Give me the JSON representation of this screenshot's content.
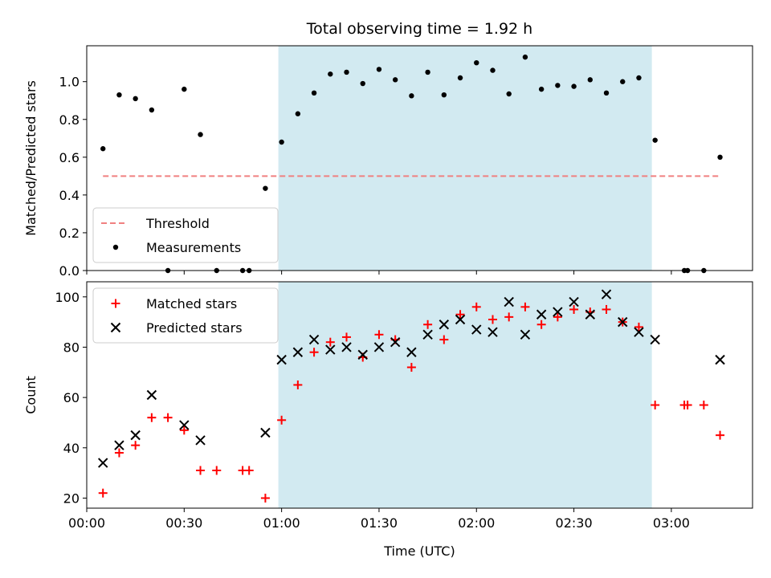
{
  "chart_data": [
    {
      "type": "scatter",
      "title": "Total observing time = 1.92 h",
      "ylabel": "Matched/Predicted stars",
      "xlim": [
        "00:00",
        "03:25"
      ],
      "ylim": [
        0,
        1.19
      ],
      "yticks": [
        "0.0",
        "0.2",
        "0.4",
        "0.6",
        "0.8",
        "1.0"
      ],
      "highlight_span": {
        "start": "00:59",
        "end": "02:54",
        "color": "#add8e6"
      },
      "threshold": {
        "name": "Threshold",
        "value": 0.5,
        "start": "00:05",
        "end": "03:15",
        "color": "#f08080"
      },
      "legend": [
        "Threshold",
        "Measurements"
      ],
      "legend_position": "lower-left",
      "series": [
        {
          "name": "Measurements",
          "marker": "dot",
          "color": "#000000",
          "x": [
            "00:05",
            "00:10",
            "00:15",
            "00:20",
            "00:25",
            "00:30",
            "00:35",
            "00:40",
            "00:48",
            "00:50",
            "00:55",
            "01:00",
            "01:05",
            "01:10",
            "01:15",
            "01:20",
            "01:25",
            "01:30",
            "01:35",
            "01:40",
            "01:45",
            "01:50",
            "01:55",
            "02:00",
            "02:05",
            "02:10",
            "02:15",
            "02:20",
            "02:25",
            "02:30",
            "02:35",
            "02:40",
            "02:45",
            "02:50",
            "02:55",
            "03:04",
            "03:05",
            "03:10",
            "03:15"
          ],
          "y": [
            0.645,
            0.93,
            0.91,
            0.85,
            0.0,
            0.96,
            0.72,
            0.0,
            0.0,
            0.0,
            0.435,
            0.68,
            0.83,
            0.94,
            1.04,
            1.05,
            0.99,
            1.065,
            1.01,
            0.925,
            1.05,
            0.93,
            1.02,
            1.1,
            1.06,
            0.935,
            1.13,
            0.96,
            0.98,
            0.975,
            1.01,
            0.94,
            1.0,
            1.02,
            0.69,
            0.0,
            0.0,
            0.0,
            0.6
          ]
        }
      ]
    },
    {
      "type": "scatter",
      "xlabel": "Time (UTC)",
      "ylabel": "Count",
      "xlim": [
        "00:00",
        "03:25"
      ],
      "ylim": [
        16,
        106
      ],
      "yticks": [
        "20",
        "40",
        "60",
        "80",
        "100"
      ],
      "xticks": [
        "00:00",
        "00:30",
        "01:00",
        "01:30",
        "02:00",
        "02:30",
        "03:00"
      ],
      "highlight_span": {
        "start": "00:59",
        "end": "02:54",
        "color": "#add8e6"
      },
      "legend": [
        "Matched stars",
        "Predicted stars"
      ],
      "legend_position": "upper-left",
      "series": [
        {
          "name": "Matched stars",
          "marker": "plus",
          "color": "#ff0000",
          "x": [
            "00:05",
            "00:10",
            "00:15",
            "00:20",
            "00:25",
            "00:30",
            "00:35",
            "00:40",
            "00:48",
            "00:50",
            "00:55",
            "01:00",
            "01:05",
            "01:10",
            "01:15",
            "01:20",
            "01:25",
            "01:30",
            "01:35",
            "01:40",
            "01:45",
            "01:50",
            "01:55",
            "02:00",
            "02:05",
            "02:10",
            "02:15",
            "02:20",
            "02:25",
            "02:30",
            "02:35",
            "02:40",
            "02:45",
            "02:50",
            "02:55",
            "03:04",
            "03:05",
            "03:10",
            "03:15"
          ],
          "y": [
            22,
            38,
            41,
            52,
            52,
            47,
            31,
            31,
            31,
            31,
            20,
            51,
            65,
            78,
            82,
            84,
            76,
            85,
            83,
            72,
            89,
            83,
            93,
            96,
            91,
            92,
            96,
            89,
            92,
            95,
            94,
            95,
            90,
            88,
            57,
            57,
            57,
            57,
            45
          ]
        },
        {
          "name": "Predicted stars",
          "marker": "x",
          "color": "#000000",
          "x": [
            "00:05",
            "00:10",
            "00:15",
            "00:20",
            "00:30",
            "00:35",
            "00:55",
            "01:00",
            "01:05",
            "01:10",
            "01:15",
            "01:20",
            "01:25",
            "01:30",
            "01:35",
            "01:40",
            "01:45",
            "01:50",
            "01:55",
            "02:00",
            "02:05",
            "02:10",
            "02:15",
            "02:20",
            "02:25",
            "02:30",
            "02:35",
            "02:40",
            "02:45",
            "02:50",
            "02:55",
            "03:15"
          ],
          "y": [
            34,
            41,
            45,
            61,
            49,
            43,
            46,
            75,
            78,
            83,
            79,
            80,
            77,
            80,
            82,
            78,
            85,
            89,
            91,
            87,
            86,
            98,
            85,
            93,
            94,
            98,
            93,
            101,
            90,
            86,
            83,
            75
          ]
        }
      ]
    }
  ]
}
